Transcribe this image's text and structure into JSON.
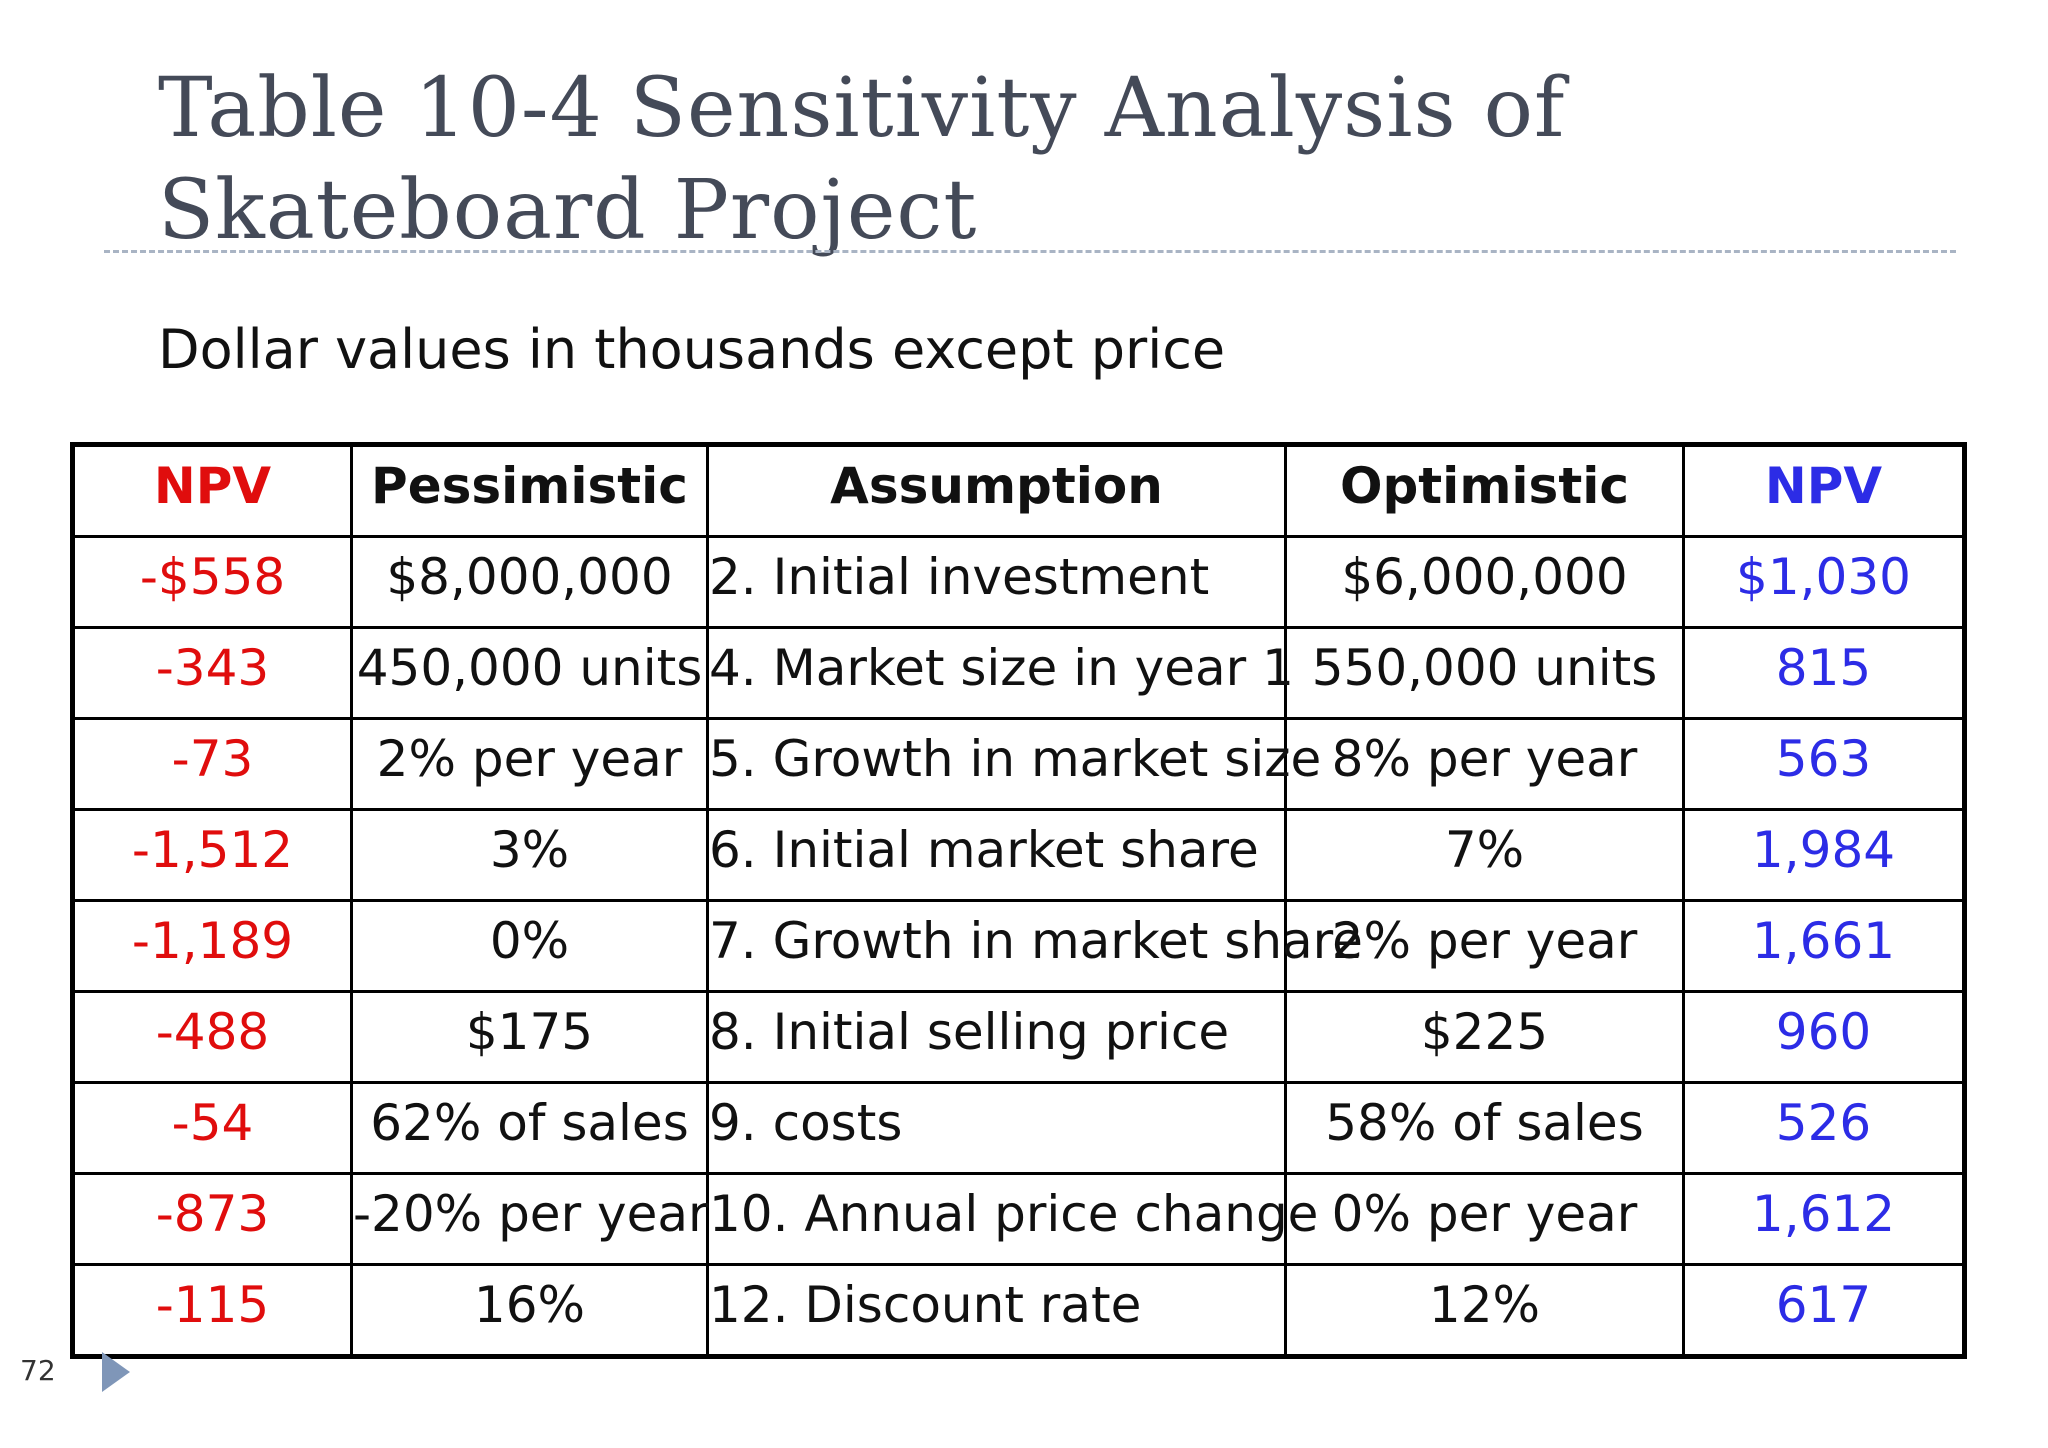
{
  "slide": {
    "title_line1": "Table 10-4 Sensitivity Analysis of",
    "title_line2": "Skateboard Project",
    "subtitle": "Dollar values in thousands except price",
    "page_number": "72"
  },
  "colors": {
    "negative": "#e00d0d",
    "positive": "#2c2ce6",
    "title": "#444a58",
    "accent": "#7f96b8"
  },
  "table": {
    "headers": [
      "NPV",
      "Pessimistic",
      "Assumption",
      "Optimistic",
      "NPV"
    ],
    "rows": [
      [
        "-$558",
        "$8,000,000",
        "2. Initial investment",
        "$6,000,000",
        "$1,030"
      ],
      [
        "-343",
        "450,000 units",
        "4. Market size in year 1",
        "550,000 units",
        "815"
      ],
      [
        "-73",
        "2% per year",
        "5. Growth in market size",
        "8% per year",
        "563"
      ],
      [
        "-1,512",
        "3%",
        "6. Initial market share",
        "7%",
        "1,984"
      ],
      [
        "-1,189",
        "0%",
        "7. Growth in market share",
        "2% per year",
        "1,661"
      ],
      [
        "-488",
        "$175",
        "8. Initial selling price",
        "$225",
        "960"
      ],
      [
        "-54",
        "62% of sales",
        "9. costs",
        "58% of sales",
        "526"
      ],
      [
        "-873",
        "-20% per year",
        "10. Annual price change",
        "0% per year",
        "1,612"
      ],
      [
        "-115",
        "16%",
        "12. Discount rate",
        "12%",
        "617"
      ]
    ]
  }
}
